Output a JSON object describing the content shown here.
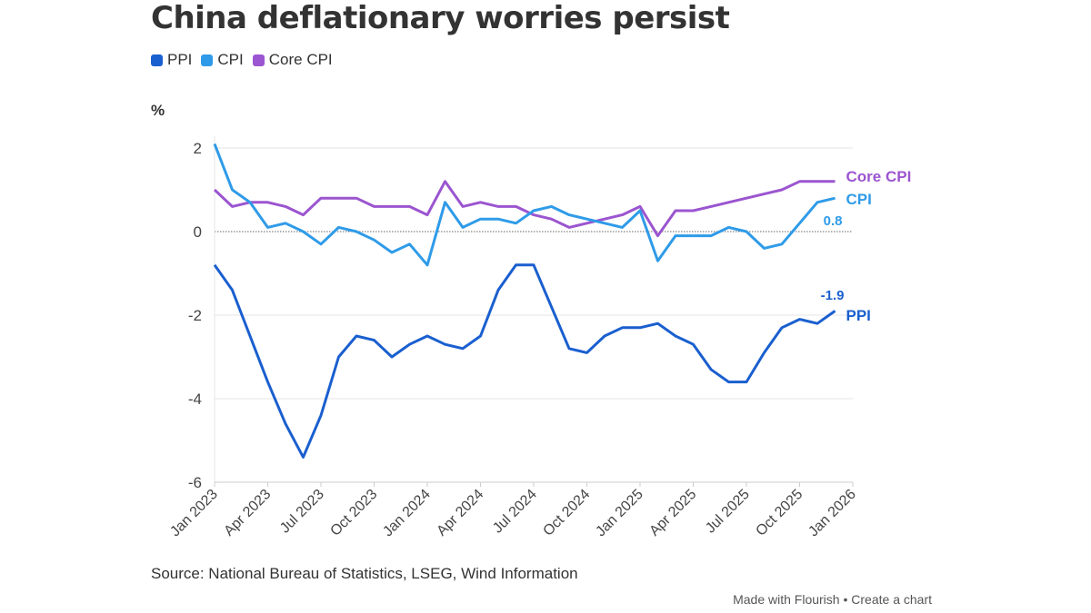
{
  "chart_data": {
    "type": "line",
    "title": "China deflationary worries persist",
    "ylabel": "%",
    "ylim": [
      -6,
      2
    ],
    "yticks": [
      2,
      0,
      -2,
      -4,
      -6
    ],
    "xlim": [
      "Jan 2023",
      "Jan 2026"
    ],
    "xticks": [
      "Jan 2023",
      "Apr 2023",
      "Jul 2023",
      "Oct 2023",
      "Jan 2024",
      "Apr 2024",
      "Jul 2024",
      "Oct 2024",
      "Jan 2025",
      "Apr 2025",
      "Jul 2025",
      "Oct 2025",
      "Jan 2026"
    ],
    "x_start": "Jan 2023",
    "x_frequency": "monthly",
    "grid": true,
    "legend_position": "top-left",
    "series": [
      {
        "name": "PPI",
        "color": "#1a5fcf",
        "end_label": "PPI",
        "value_label": "-1.9",
        "values": [
          -0.8,
          -1.4,
          -2.5,
          -3.6,
          -4.6,
          -5.4,
          -4.4,
          -3.0,
          -2.5,
          -2.6,
          -3.0,
          -2.7,
          -2.5,
          -2.7,
          -2.8,
          -2.5,
          -1.4,
          -0.8,
          -0.8,
          -1.8,
          -2.8,
          -2.9,
          -2.5,
          -2.3,
          -2.3,
          -2.2,
          -2.5,
          -2.7,
          -3.3,
          -3.6,
          -3.6,
          -2.9,
          -2.3,
          -2.1,
          -2.2,
          -1.9
        ]
      },
      {
        "name": "CPI",
        "color": "#2f9be8",
        "end_label": "CPI",
        "value_label": "0.8",
        "values": [
          2.1,
          1.0,
          0.7,
          0.1,
          0.2,
          0.0,
          -0.3,
          0.1,
          0.0,
          -0.2,
          -0.5,
          -0.3,
          -0.8,
          0.7,
          0.1,
          0.3,
          0.3,
          0.2,
          0.5,
          0.6,
          0.4,
          0.3,
          0.2,
          0.1,
          0.5,
          -0.7,
          -0.1,
          -0.1,
          -0.1,
          0.1,
          0.0,
          -0.4,
          -0.3,
          0.2,
          0.7,
          0.8
        ]
      },
      {
        "name": "Core CPI",
        "color": "#9b55d0",
        "end_label": "Core CPI",
        "values": [
          1.0,
          0.6,
          0.7,
          0.7,
          0.6,
          0.4,
          0.8,
          0.8,
          0.8,
          0.6,
          0.6,
          0.6,
          0.4,
          1.2,
          0.6,
          0.7,
          0.6,
          0.6,
          0.4,
          0.3,
          0.1,
          0.2,
          0.3,
          0.4,
          0.6,
          -0.1,
          0.5,
          0.5,
          0.6,
          0.7,
          0.8,
          0.9,
          1.0,
          1.2,
          1.2,
          1.2
        ]
      }
    ]
  },
  "source": "Source: National Bureau of Statistics, LSEG, Wind Information",
  "footer": {
    "made_with": "Made with Flourish",
    "separator": "•",
    "create": "Create a chart"
  }
}
